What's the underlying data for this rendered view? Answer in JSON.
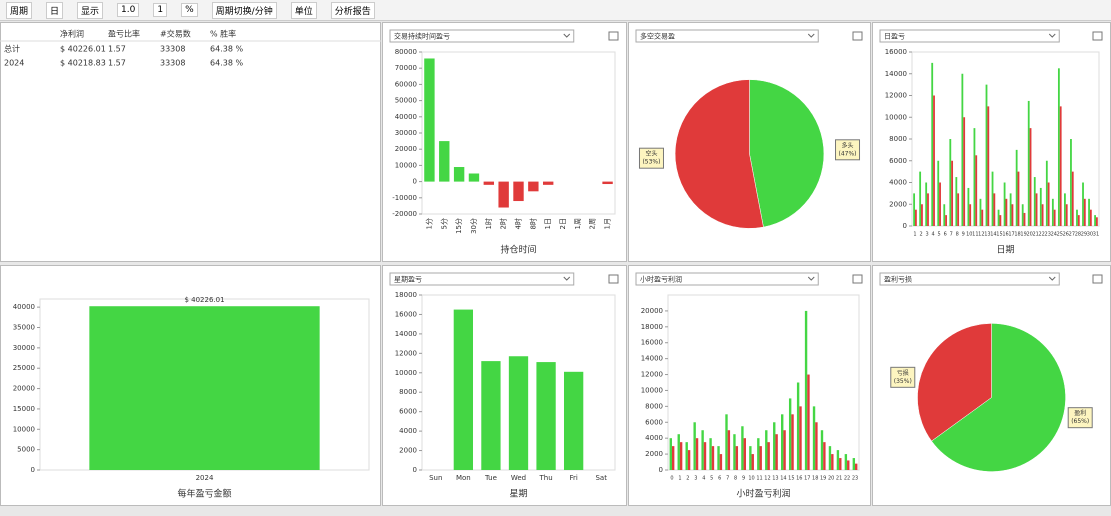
{
  "toolbar": {
    "items": [
      "周期",
      "日",
      "显示",
      "1.0",
      "1",
      "%",
      "周期切换/分钟",
      "单位",
      "分析报告"
    ]
  },
  "table": {
    "headers": [
      "",
      "净利润",
      "盈亏比率",
      "#交易数",
      "% 胜率"
    ],
    "rows": [
      [
        "总计",
        "$ 40226.01",
        "1.57",
        "33308",
        "64.38 %"
      ],
      [
        "2024",
        "$ 40218.83",
        "1.57",
        "33308",
        "64.38 %"
      ]
    ]
  },
  "chart_data": [
    {
      "type": "bar",
      "title": "交易持续时间盈亏",
      "x_label": "持仓时间",
      "rotate_labels": true,
      "categories": [
        "1分",
        "5分",
        "15分",
        "30分",
        "1时",
        "2时",
        "4时",
        "8时",
        "1日",
        "2日",
        "1周",
        "2周",
        "1月"
      ],
      "series": [
        {
          "color": "#44d644",
          "values": [
            76000,
            25000,
            9000,
            5000,
            -2000,
            -16000,
            -12000,
            -6000,
            -2000,
            0,
            0,
            0,
            -1500
          ]
        }
      ],
      "negative_color": "#e03a3a",
      "ylim": [
        -20000,
        80000
      ],
      "yticks": [
        -20000,
        -10000,
        0,
        10000,
        20000,
        30000,
        40000,
        50000,
        60000,
        70000,
        80000
      ]
    },
    {
      "type": "pie",
      "title": "多空交易盈",
      "categories": [
        "多头",
        "空头"
      ],
      "values": [
        47,
        53
      ],
      "value_labels": [
        "(47%)",
        "(53%)"
      ],
      "colors": [
        "#44d644",
        "#e03a3a"
      ]
    },
    {
      "type": "bar",
      "title": "日盈亏",
      "x_label": "日期",
      "categories": [
        "1",
        "2",
        "3",
        "4",
        "5",
        "6",
        "7",
        "8",
        "9",
        "10",
        "11",
        "12",
        "13",
        "14",
        "15",
        "16",
        "17",
        "18",
        "19",
        "20",
        "21",
        "22",
        "23",
        "24",
        "25",
        "26",
        "27",
        "28",
        "29",
        "30",
        "31"
      ],
      "series": [
        {
          "color": "#44d644",
          "values": [
            3000,
            5000,
            4000,
            15000,
            6000,
            2000,
            8000,
            4500,
            14000,
            3500,
            9000,
            2500,
            13000,
            5000,
            1500,
            4000,
            3000,
            7000,
            2000,
            11500,
            4500,
            3500,
            6000,
            2500,
            14500,
            3000,
            8000,
            1500,
            4000,
            2500,
            1000
          ]
        },
        {
          "color": "#e03a3a",
          "values": [
            1500,
            2000,
            3000,
            12000,
            4000,
            1000,
            6000,
            3000,
            10000,
            2000,
            6500,
            1500,
            11000,
            3000,
            1000,
            2500,
            2000,
            5000,
            1200,
            9000,
            3000,
            2000,
            4000,
            1500,
            11000,
            2000,
            5000,
            1000,
            2500,
            1500,
            800
          ]
        }
      ],
      "ylim": [
        0,
        16000
      ],
      "yticks": [
        0,
        2000,
        4000,
        6000,
        8000,
        10000,
        12000,
        14000,
        16000
      ]
    },
    {
      "type": "bar",
      "x_label": "每年盈亏金额",
      "categories": [
        "2024"
      ],
      "series": [
        {
          "color": "#44d644",
          "values": [
            40226.01
          ],
          "value_labels": [
            "$ 40226.01"
          ]
        }
      ],
      "ylim": [
        0,
        42000
      ],
      "yticks": [
        0,
        5000,
        10000,
        15000,
        20000,
        25000,
        30000,
        35000,
        40000
      ]
    },
    {
      "type": "bar",
      "title": "星期盈亏",
      "x_label": "星期",
      "categories": [
        "Sun",
        "Mon",
        "Tue",
        "Wed",
        "Thu",
        "Fri",
        "Sat"
      ],
      "series": [
        {
          "color": "#44d644",
          "values": [
            0,
            16500,
            11200,
            11700,
            11100,
            10100,
            0
          ]
        }
      ],
      "ylim": [
        0,
        18000
      ],
      "yticks": [
        0,
        2000,
        4000,
        6000,
        8000,
        10000,
        12000,
        14000,
        16000,
        18000
      ]
    },
    {
      "type": "bar",
      "title": "小时盈亏利润",
      "x_label": "小时盈亏利润",
      "categories": [
        "0",
        "1",
        "2",
        "3",
        "4",
        "5",
        "6",
        "7",
        "8",
        "9",
        "10",
        "11",
        "12",
        "13",
        "14",
        "15",
        "16",
        "17",
        "18",
        "19",
        "20",
        "21",
        "22",
        "23"
      ],
      "series": [
        {
          "color": "#44d644",
          "values": [
            4000,
            4500,
            3500,
            6000,
            5000,
            4000,
            3000,
            7000,
            4500,
            5500,
            3000,
            4000,
            5000,
            6000,
            7000,
            9000,
            11000,
            20000,
            8000,
            5000,
            3000,
            2500,
            2000,
            1500
          ]
        },
        {
          "color": "#e03a3a",
          "values": [
            3000,
            3500,
            2500,
            4000,
            3500,
            3000,
            2000,
            5000,
            3000,
            4000,
            2000,
            3000,
            3500,
            4500,
            5000,
            7000,
            8000,
            12000,
            6000,
            3500,
            2000,
            1500,
            1200,
            800
          ]
        }
      ],
      "ylim": [
        0,
        22000
      ],
      "yticks": [
        0,
        2000,
        4000,
        6000,
        8000,
        10000,
        12000,
        14000,
        16000,
        18000,
        20000
      ]
    },
    {
      "type": "pie",
      "title": "盈利亏损",
      "categories": [
        "盈利",
        "亏损"
      ],
      "values": [
        65,
        35
      ],
      "value_labels": [
        "(65%)",
        "(35%)"
      ],
      "colors": [
        "#44d644",
        "#e03a3a"
      ]
    }
  ]
}
